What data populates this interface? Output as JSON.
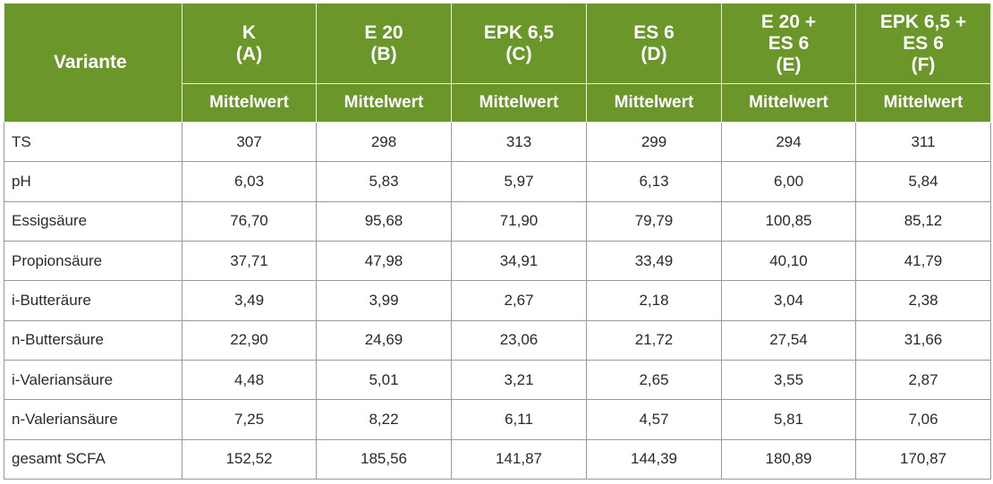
{
  "table": {
    "variant_label": "Variante",
    "groups": [
      {
        "line1": "K",
        "line2": "(A)",
        "line3": ""
      },
      {
        "line1": "E 20",
        "line2": "(B)",
        "line3": ""
      },
      {
        "line1": "EPK 6,5",
        "line2": "(C)",
        "line3": ""
      },
      {
        "line1": "ES 6",
        "line2": "(D)",
        "line3": ""
      },
      {
        "line1": "E 20 +",
        "line2": "ES 6",
        "line3": "(E)"
      },
      {
        "line1": "EPK 6,5 +",
        "line2": "ES 6",
        "line3": "(F)"
      }
    ],
    "subheader": [
      "Mittelwert",
      "Mittelwert",
      "Mittelwert",
      "Mittelwert",
      "Mittelwert",
      "Mittelwert"
    ],
    "rows": [
      {
        "label": "TS",
        "values": [
          "307",
          "298",
          "313",
          "299",
          "294",
          "311"
        ]
      },
      {
        "label": "pH",
        "values": [
          "6,03",
          "5,83",
          "5,97",
          "6,13",
          "6,00",
          "5,84"
        ]
      },
      {
        "label": "Essigsäure",
        "values": [
          "76,70",
          "95,68",
          "71,90",
          "79,79",
          "100,85",
          "85,12"
        ]
      },
      {
        "label": "Propionsäure",
        "values": [
          "37,71",
          "47,98",
          "34,91",
          "33,49",
          "40,10",
          "41,79"
        ]
      },
      {
        "label": "i-Butteräure",
        "values": [
          "3,49",
          "3,99",
          "2,67",
          "2,18",
          "3,04",
          "2,38"
        ]
      },
      {
        "label": "n-Buttersäure",
        "values": [
          "22,90",
          "24,69",
          "23,06",
          "21,72",
          "27,54",
          "31,66"
        ]
      },
      {
        "label": "i-Valeriansäure",
        "values": [
          "4,48",
          "5,01",
          "3,21",
          "2,65",
          "3,55",
          "2,87"
        ]
      },
      {
        "label": "n-Valeriansäure",
        "values": [
          "7,25",
          "8,22",
          "6,11",
          "4,57",
          "5,81",
          "7,06"
        ]
      },
      {
        "label": "gesamt SCFA",
        "values": [
          "152,52",
          "185,56",
          "141,87",
          "144,39",
          "180,89",
          "170,87"
        ]
      }
    ]
  }
}
